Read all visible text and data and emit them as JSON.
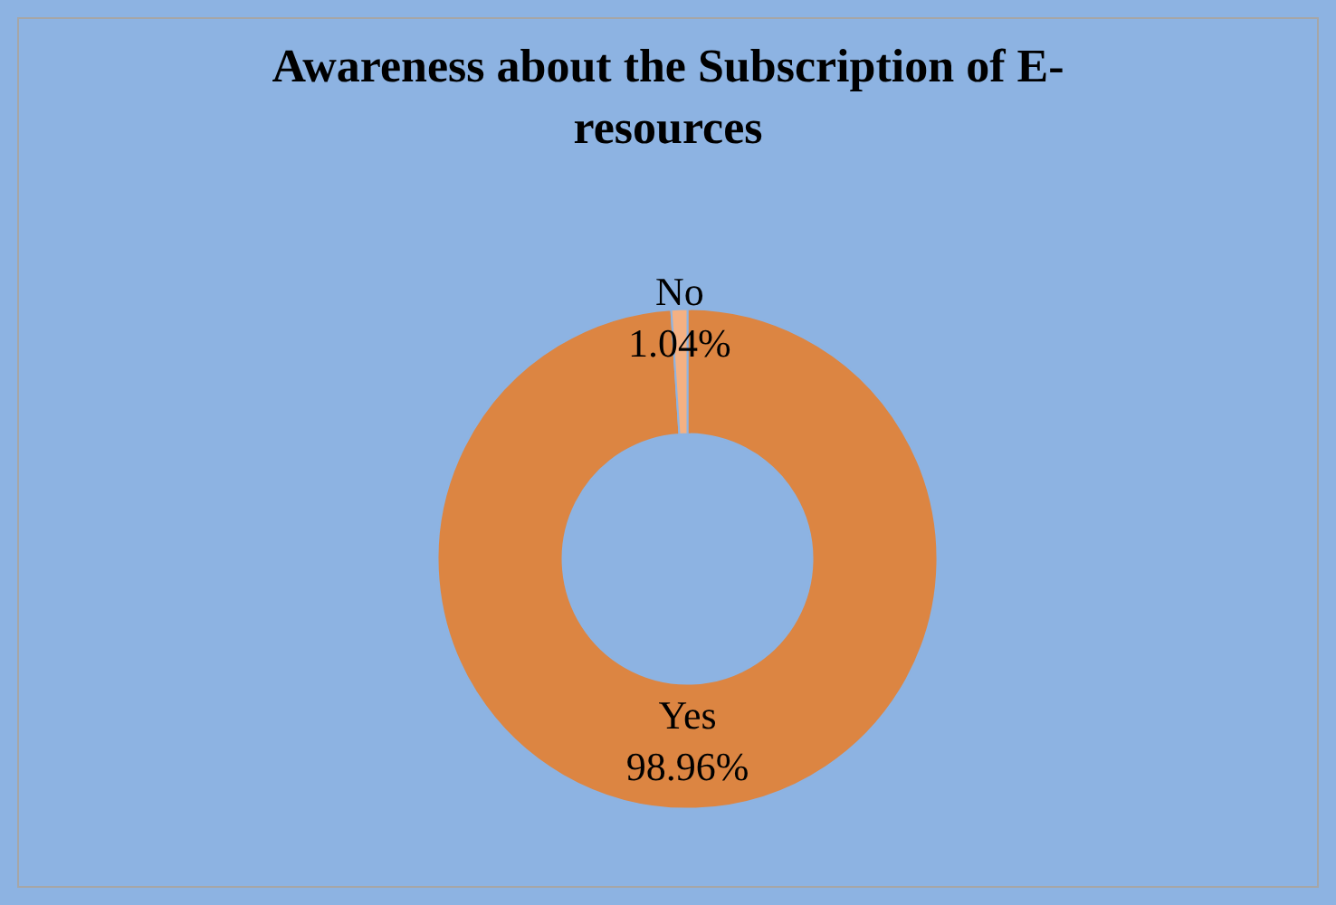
{
  "chart_data": {
    "type": "donut",
    "title": "Awareness about the Subscription of E-resources",
    "categories": [
      "Yes",
      "No"
    ],
    "values": [
      98.96,
      1.04
    ],
    "colors": [
      "#dc8542",
      "#f4b183"
    ],
    "value_labels": [
      "98.96%",
      "1.04%"
    ],
    "legend": false
  }
}
